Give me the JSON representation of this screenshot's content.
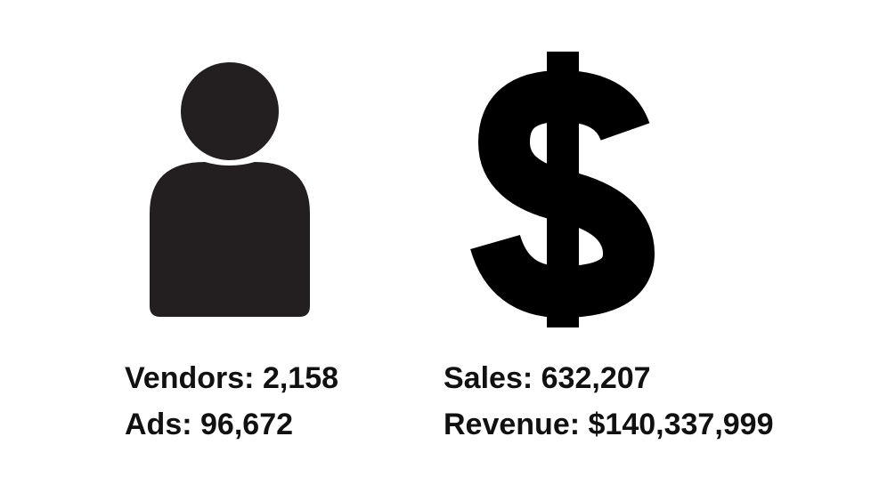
{
  "stats": [
    {
      "label": "Vendors:",
      "value": "2,158"
    },
    {
      "label": "Ads:",
      "value": "96,672"
    },
    {
      "label": "Sales:",
      "value": "632,207"
    },
    {
      "label": "Revenue:",
      "value": "$140,337,999"
    }
  ]
}
